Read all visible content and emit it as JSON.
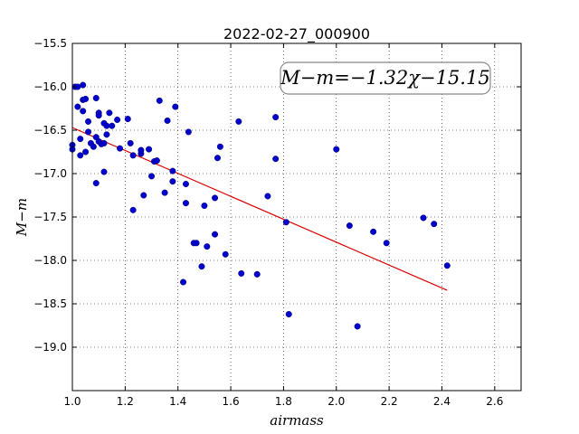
{
  "chart_data": {
    "type": "scatter",
    "title": "2022-02-27_000900",
    "xlabel": "airmass",
    "ylabel": "M−m",
    "xlim": [
      1.0,
      2.7
    ],
    "ylim": [
      -15.5,
      -19.5
    ],
    "y_inverted": true,
    "grid": true,
    "xticks": [
      "1.0",
      "1.2",
      "1.4",
      "1.6",
      "1.8",
      "2.0",
      "2.2",
      "2.4",
      "2.6"
    ],
    "yticks": [
      "−15.5",
      "−16.0",
      "−16.5",
      "−17.0",
      "−17.5",
      "−18.0",
      "−18.5",
      "−19.0"
    ],
    "annotation": "M−m=−1.32χ−15.15",
    "point_color": "#0000cc",
    "fit_color": "#dd0000",
    "fit": {
      "slope": -1.32,
      "intercept": -15.15,
      "x_range": [
        1.0,
        2.42
      ]
    },
    "points": [
      [
        1.0,
        -16.67
      ],
      [
        1.0,
        -16.72
      ],
      [
        1.01,
        -16.0
      ],
      [
        1.02,
        -16.0
      ],
      [
        1.02,
        -16.23
      ],
      [
        1.03,
        -16.6
      ],
      [
        1.03,
        -16.79
      ],
      [
        1.04,
        -16.28
      ],
      [
        1.04,
        -16.15
      ],
      [
        1.04,
        -15.98
      ],
      [
        1.05,
        -16.14
      ],
      [
        1.05,
        -16.75
      ],
      [
        1.06,
        -16.52
      ],
      [
        1.06,
        -16.4
      ],
      [
        1.07,
        -16.65
      ],
      [
        1.08,
        -16.69
      ],
      [
        1.09,
        -16.13
      ],
      [
        1.09,
        -16.58
      ],
      [
        1.09,
        -17.11
      ],
      [
        1.1,
        -16.3
      ],
      [
        1.1,
        -16.33
      ],
      [
        1.1,
        -16.63
      ],
      [
        1.11,
        -16.66
      ],
      [
        1.12,
        -16.98
      ],
      [
        1.12,
        -16.65
      ],
      [
        1.12,
        -16.42
      ],
      [
        1.13,
        -16.55
      ],
      [
        1.13,
        -16.45
      ],
      [
        1.14,
        -16.3
      ],
      [
        1.15,
        -16.45
      ],
      [
        1.17,
        -16.38
      ],
      [
        1.18,
        -16.71
      ],
      [
        1.21,
        -16.37
      ],
      [
        1.22,
        -16.65
      ],
      [
        1.23,
        -16.79
      ],
      [
        1.23,
        -17.42
      ],
      [
        1.26,
        -16.77
      ],
      [
        1.26,
        -16.73
      ],
      [
        1.27,
        -17.25
      ],
      [
        1.29,
        -16.72
      ],
      [
        1.3,
        -17.03
      ],
      [
        1.31,
        -16.86
      ],
      [
        1.32,
        -16.85
      ],
      [
        1.33,
        -16.16
      ],
      [
        1.35,
        -17.22
      ],
      [
        1.36,
        -16.39
      ],
      [
        1.38,
        -16.97
      ],
      [
        1.38,
        -17.09
      ],
      [
        1.39,
        -16.23
      ],
      [
        1.42,
        -18.25
      ],
      [
        1.43,
        -17.12
      ],
      [
        1.43,
        -17.34
      ],
      [
        1.44,
        -16.52
      ],
      [
        1.46,
        -17.8
      ],
      [
        1.47,
        -17.8
      ],
      [
        1.49,
        -18.07
      ],
      [
        1.5,
        -17.37
      ],
      [
        1.51,
        -17.84
      ],
      [
        1.54,
        -17.7
      ],
      [
        1.54,
        -17.28
      ],
      [
        1.55,
        -16.82
      ],
      [
        1.56,
        -16.69
      ],
      [
        1.58,
        -17.93
      ],
      [
        1.63,
        -16.4
      ],
      [
        1.64,
        -18.15
      ],
      [
        1.7,
        -18.16
      ],
      [
        1.74,
        -17.26
      ],
      [
        1.77,
        -16.35
      ],
      [
        1.77,
        -16.83
      ],
      [
        1.81,
        -17.56
      ],
      [
        1.82,
        -18.62
      ],
      [
        2.0,
        -16.72
      ],
      [
        2.05,
        -17.6
      ],
      [
        2.08,
        -18.76
      ],
      [
        2.14,
        -17.67
      ],
      [
        2.19,
        -17.8
      ],
      [
        2.33,
        -17.51
      ],
      [
        2.37,
        -17.58
      ],
      [
        2.42,
        -18.06
      ]
    ]
  }
}
